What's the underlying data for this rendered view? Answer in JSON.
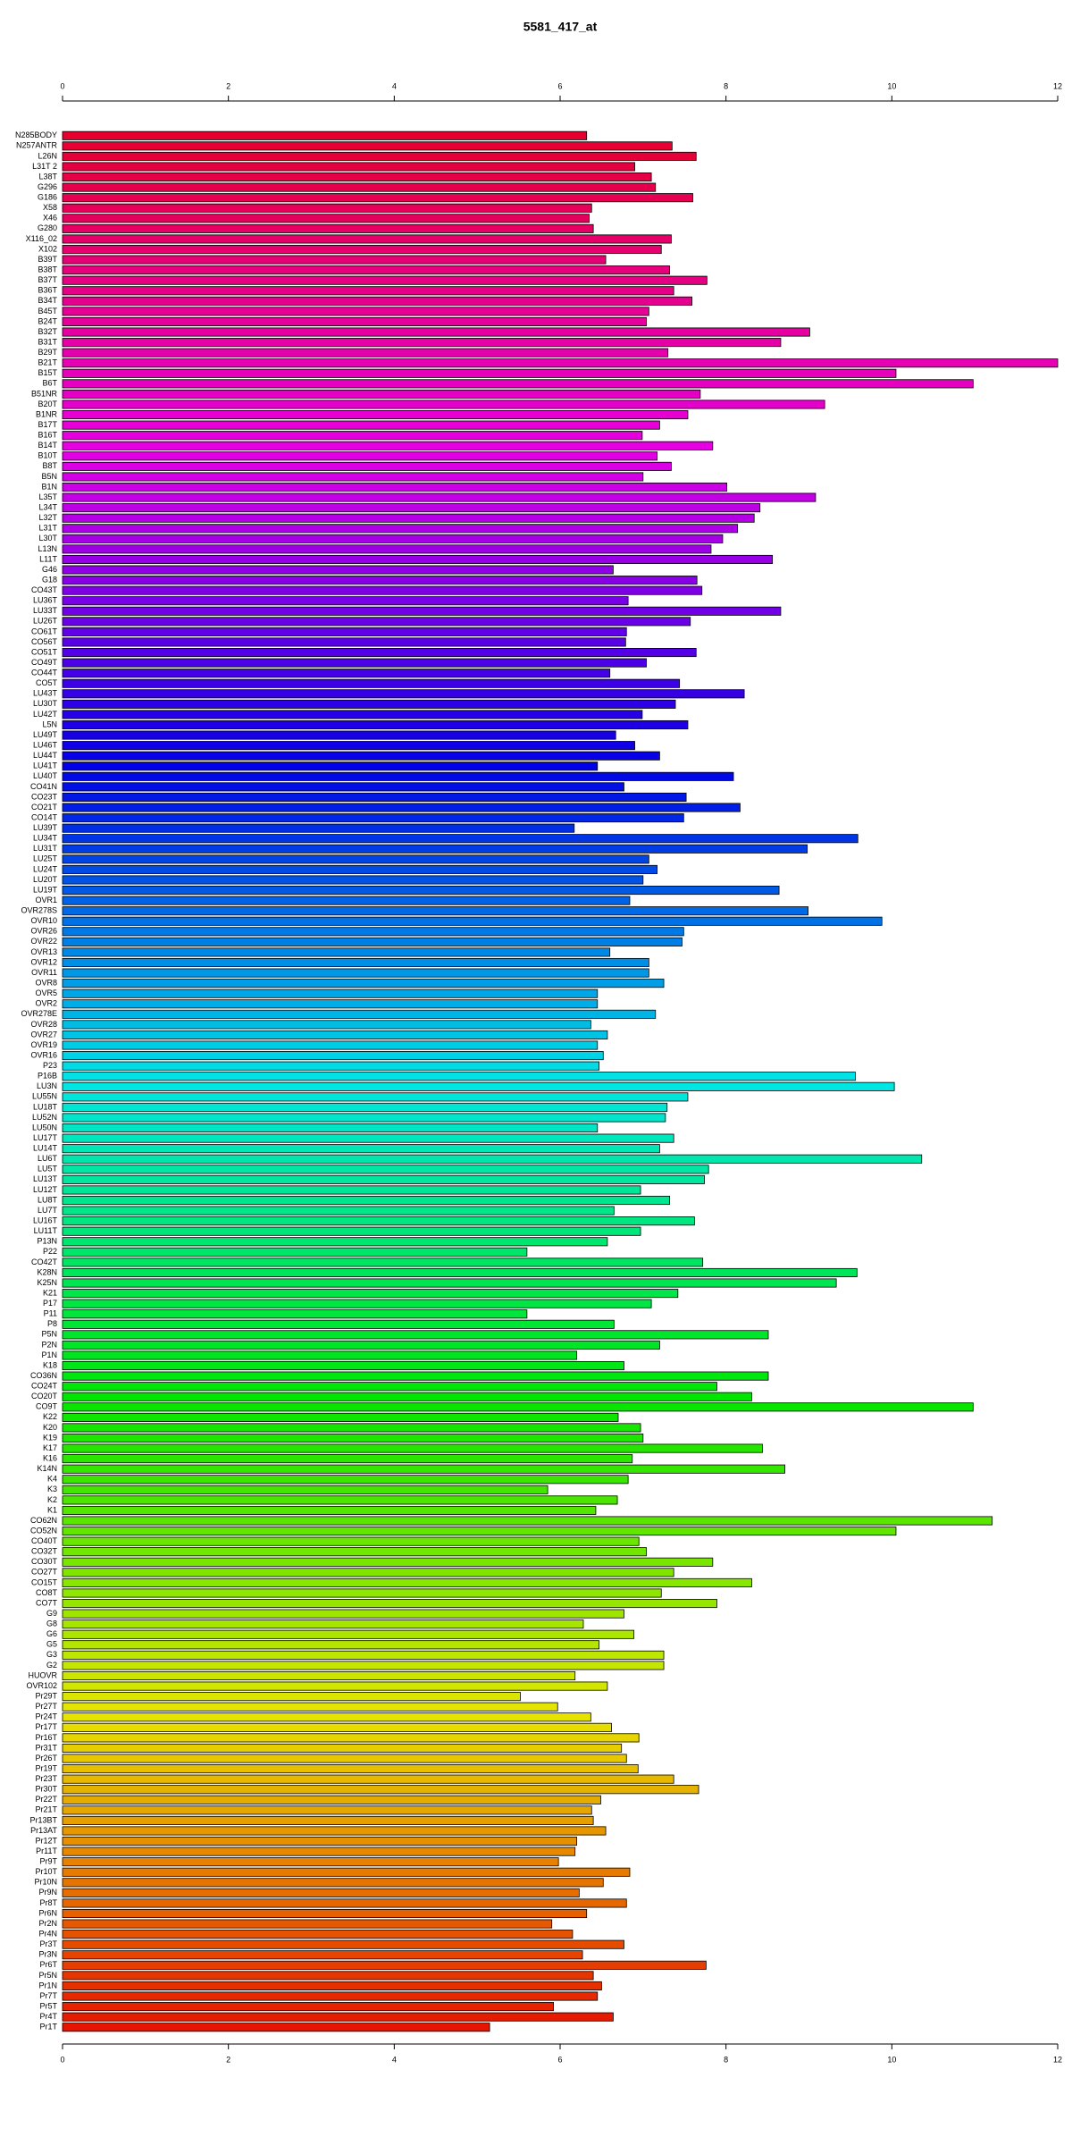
{
  "chart_data": {
    "type": "barh",
    "title": "5581_417_at",
    "categories": [
      "N285BODY",
      "N257ANTR",
      "L26N",
      "L31T 2",
      "L38T",
      "G296",
      "G186",
      "X58",
      "X46",
      "G280",
      "X116_02",
      "X102",
      "B39T",
      "B38T",
      "B37T",
      "B36T",
      "B34T",
      "B45T",
      "B24T",
      "B32T",
      "B31T",
      "B29T",
      "B21T",
      "B15T",
      "B6T",
      "B51NR",
      "B20T",
      "B1NR",
      "B17T",
      "B16T",
      "B14T",
      "B10T",
      "B8T",
      "B5N",
      "B1N",
      "L35T",
      "L34T",
      "L32T",
      "L31T",
      "L30T",
      "L13N",
      "L11T",
      "G46",
      "G18",
      "CO43T",
      "LU36T",
      "LU33T",
      "LU26T",
      "CO61T",
      "CO56T",
      "CO51T",
      "CO49T",
      "CO44T",
      "CO5T",
      "LU43T",
      "LU30T",
      "LU42T",
      "L5N",
      "LU49T",
      "LU46T",
      "LU44T",
      "LU41T",
      "LU40T",
      "CO41N",
      "CO23T",
      "CO21T",
      "CO14T",
      "LU39T",
      "LU34T",
      "LU31T",
      "LU25T",
      "LU24T",
      "LU20T",
      "LU19T",
      "OVR1",
      "OVR278S",
      "OVR10",
      "OVR26",
      "OVR22",
      "OVR13",
      "OVR12",
      "OVR11",
      "OVR8",
      "OVR5",
      "OVR2",
      "OVR278E",
      "OVR28",
      "OVR27",
      "OVR19",
      "OVR16",
      "P23",
      "P16B",
      "LU3N",
      "LU55N",
      "LU18T",
      "LU52N",
      "LU50N",
      "LU17T",
      "LU14T",
      "LU6T",
      "LU5T",
      "LU13T",
      "LU12T",
      "LU8T",
      "LU7T",
      "LU16T",
      "LU11T",
      "P13N",
      "P22",
      "CO42T",
      "K28N",
      "K25N",
      "K21",
      "P17",
      "P11",
      "P8",
      "P5N",
      "P2N",
      "P1N",
      "K18",
      "CO36N",
      "CO24T",
      "CO20T",
      "CO9T",
      "K22",
      "K20",
      "K19",
      "K17",
      "K16",
      "K14N",
      "K4",
      "K3",
      "K2",
      "K1",
      "CO62N",
      "CO52N",
      "CO40T",
      "CO32T",
      "CO30T",
      "CO27T",
      "CO15T",
      "CO8T",
      "CO7T",
      "G9",
      "G8",
      "G6",
      "G5",
      "G3",
      "G2",
      "HUOVR",
      "OVR102",
      "Pr29T",
      "Pr27T",
      "Pr24T",
      "Pr17T",
      "Pr16T",
      "Pr31T",
      "Pr26T",
      "Pr19T",
      "Pr23T",
      "Pr30T",
      "Pr22T",
      "Pr21T",
      "Pr13BT",
      "Pr13AT",
      "Pr12T",
      "Pr11T",
      "Pr9T",
      "Pr10T",
      "Pr10N",
      "Pr9N",
      "Pr8T",
      "Pr6N",
      "Pr2N",
      "Pr4N",
      "Pr3T",
      "Pr3N",
      "Pr6T",
      "Pr5N",
      "Pr1N",
      "Pr7T",
      "Pr5T",
      "Pr4T",
      "Pr1T"
    ],
    "values": [
      6.32,
      7.35,
      7.64,
      6.9,
      7.1,
      7.15,
      7.6,
      6.38,
      6.35,
      6.4,
      7.34,
      7.22,
      6.55,
      7.32,
      7.77,
      7.37,
      7.59,
      7.07,
      7.04,
      9.01,
      8.66,
      7.3,
      12.0,
      10.05,
      10.98,
      7.69,
      9.19,
      7.54,
      7.2,
      6.99,
      7.84,
      7.17,
      7.34,
      7.0,
      8.01,
      9.08,
      8.41,
      8.34,
      8.14,
      7.96,
      7.82,
      8.56,
      6.64,
      7.65,
      7.71,
      6.82,
      8.66,
      7.57,
      6.8,
      6.79,
      7.64,
      7.04,
      6.6,
      7.44,
      8.22,
      7.39,
      6.99,
      7.54,
      6.67,
      6.9,
      7.2,
      6.45,
      8.09,
      6.77,
      7.52,
      8.17,
      7.49,
      6.17,
      9.59,
      8.98,
      7.07,
      7.17,
      7.0,
      8.64,
      6.84,
      8.99,
      9.88,
      7.49,
      7.47,
      6.6,
      7.07,
      7.07,
      7.25,
      6.45,
      6.45,
      7.15,
      6.37,
      6.57,
      6.45,
      6.52,
      6.47,
      9.56,
      10.03,
      7.54,
      7.29,
      7.27,
      6.45,
      7.37,
      7.2,
      10.36,
      7.79,
      7.74,
      6.97,
      7.32,
      6.65,
      7.62,
      6.97,
      6.57,
      5.6,
      7.72,
      9.58,
      9.33,
      7.42,
      7.1,
      5.6,
      6.65,
      8.51,
      7.2,
      6.2,
      6.77,
      8.51,
      7.89,
      8.31,
      10.98,
      6.7,
      6.97,
      7.0,
      8.44,
      6.87,
      8.71,
      6.82,
      5.85,
      6.69,
      6.43,
      11.21,
      10.05,
      6.95,
      7.04,
      7.84,
      7.37,
      8.31,
      7.22,
      7.89,
      6.77,
      6.28,
      6.89,
      6.47,
      7.25,
      7.25,
      6.18,
      6.57,
      5.52,
      5.97,
      6.37,
      6.62,
      6.95,
      6.74,
      6.8,
      6.94,
      7.37,
      7.67,
      6.49,
      6.38,
      6.4,
      6.55,
      6.2,
      6.18,
      5.98,
      6.84,
      6.52,
      6.23,
      6.8,
      6.32,
      5.9,
      6.15,
      6.77,
      6.27,
      7.76,
      6.4,
      6.5,
      6.45,
      5.92,
      6.64,
      5.15
    ],
    "color_gradient": [
      "#e6002e",
      "#e600e6",
      "#0000e6",
      "#00e6e6",
      "#00e600",
      "#e6e600",
      "#e61400"
    ],
    "xlim": [
      0,
      12
    ],
    "xticks": [
      0,
      2,
      4,
      6,
      8,
      10,
      12
    ]
  }
}
